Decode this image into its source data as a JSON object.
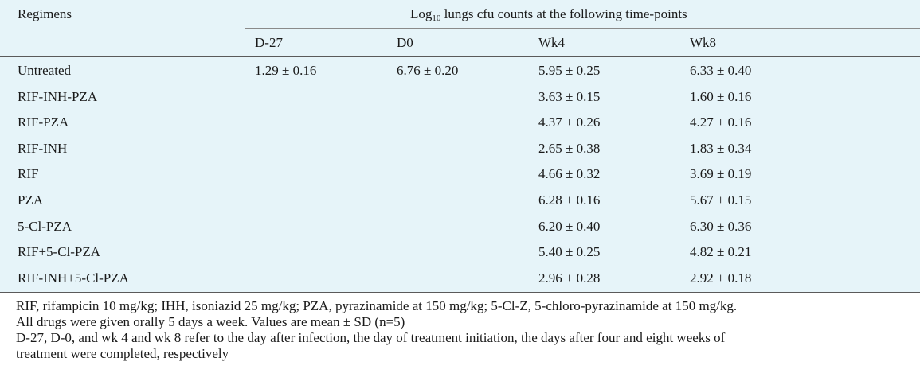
{
  "table": {
    "header": {
      "regimens_label": "Regimens",
      "group_title_pre": "Log",
      "group_title_sub": "10",
      "group_title_post": " lungs cfu counts at the following time-points",
      "columns": [
        "D-27",
        "D0",
        "Wk4",
        "Wk8"
      ]
    },
    "rows": [
      {
        "regimen": "Untreated",
        "d27": "1.29 ± 0.16",
        "d0": "6.76 ± 0.20",
        "wk4": "5.95 ± 0.25",
        "wk8": "6.33 ± 0.40"
      },
      {
        "regimen": "RIF-INH-PZA",
        "d27": "",
        "d0": "",
        "wk4": "3.63 ± 0.15",
        "wk8": "1.60 ± 0.16"
      },
      {
        "regimen": "RIF-PZA",
        "d27": "",
        "d0": "",
        "wk4": "4.37 ± 0.26",
        "wk8": "4.27 ± 0.16"
      },
      {
        "regimen": "RIF-INH",
        "d27": "",
        "d0": "",
        "wk4": "2.65 ± 0.38",
        "wk8": "1.83 ± 0.34"
      },
      {
        "regimen": "RIF",
        "d27": "",
        "d0": "",
        "wk4": "4.66 ± 0.32",
        "wk8": "3.69 ± 0.19"
      },
      {
        "regimen": "PZA",
        "d27": "",
        "d0": "",
        "wk4": "6.28 ± 0.16",
        "wk8": "5.67 ± 0.15"
      },
      {
        "regimen": "5-Cl-PZA",
        "d27": "",
        "d0": "",
        "wk4": "6.20 ± 0.40",
        "wk8": "6.30 ± 0.36"
      },
      {
        "regimen": "RIF+5-Cl-PZA",
        "d27": "",
        "d0": "",
        "wk4": "5.40 ± 0.25",
        "wk8": "4.82 ± 0.21"
      },
      {
        "regimen": "RIF-INH+5-Cl-PZA",
        "d27": "",
        "d0": "",
        "wk4": "2.96 ± 0.28",
        "wk8": "2.92 ± 0.18"
      }
    ],
    "footnotes": [
      "RIF, rifampicin 10 mg/kg; IHH, isoniazid 25 mg/kg; PZA, pyrazinamide at 150 mg/kg; 5-Cl-Z, 5-chloro-pyrazinamide at 150 mg/kg.",
      "All drugs were given orally 5 days a week. Values are mean ± SD (n=5)",
      "D-27, D-0, and wk 4 and wk 8 refer to the day after infection, the day of treatment initiation, the days after four and eight weeks of",
      "treatment were completed, respectively"
    ],
    "colors": {
      "table_background": "#e6f4f9",
      "rule": "#5a5a5a"
    }
  }
}
